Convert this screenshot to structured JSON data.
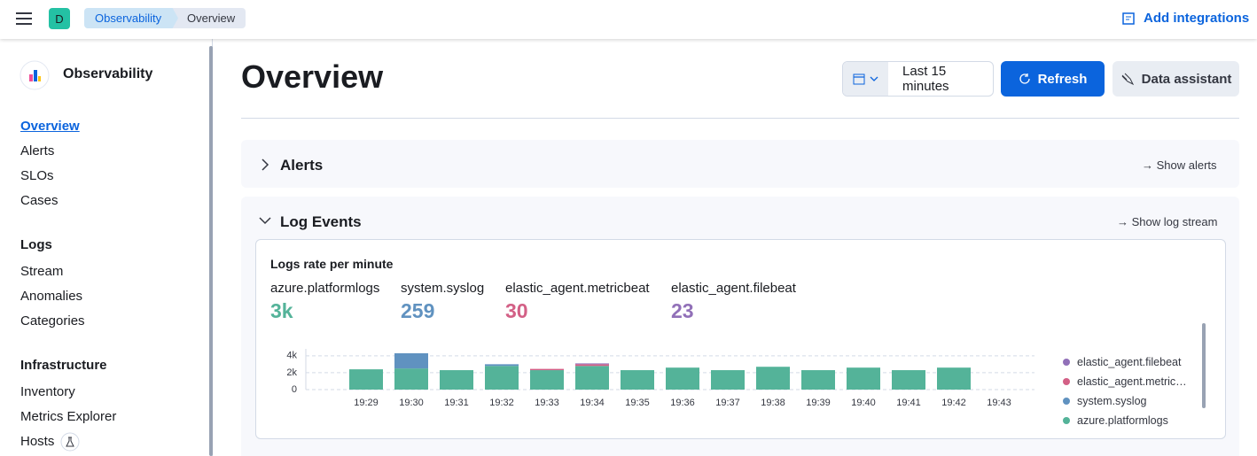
{
  "header": {
    "app_initial": "D",
    "breadcrumbs": [
      "Observability",
      "Overview"
    ],
    "add_integrations": "Add integrations"
  },
  "sidebar": {
    "title": "Observability",
    "nav": [
      "Overview",
      "Alerts",
      "SLOs",
      "Cases"
    ],
    "groups": [
      {
        "title": "Logs",
        "items": [
          "Stream",
          "Anomalies",
          "Categories"
        ]
      },
      {
        "title": "Infrastructure",
        "items": [
          "Inventory",
          "Metrics Explorer",
          "Hosts"
        ]
      }
    ]
  },
  "page": {
    "title": "Overview",
    "date_range": "Last 15 minutes",
    "refresh": "Refresh",
    "data_assistant": "Data assistant"
  },
  "sections": {
    "alerts": {
      "title": "Alerts",
      "link": "Show alerts"
    },
    "log_events": {
      "title": "Log Events",
      "link": "Show log stream",
      "card_title": "Logs rate per minute",
      "stats": [
        {
          "name": "azure.platformlogs",
          "value": "3k",
          "color": "#54b399"
        },
        {
          "name": "system.syslog",
          "value": "259",
          "color": "#6092c0"
        },
        {
          "name": "elastic_agent.metricbeat",
          "value": "30",
          "color": "#d36086"
        },
        {
          "name": "elastic_agent.filebeat",
          "value": "23",
          "color": "#9170b8"
        }
      ]
    }
  },
  "chart_data": {
    "type": "bar",
    "stacked": true,
    "categories": [
      "19:29",
      "19:30",
      "19:31",
      "19:32",
      "19:33",
      "19:34",
      "19:35",
      "19:36",
      "19:37",
      "19:38",
      "19:39",
      "19:40",
      "19:41",
      "19:42",
      "19:43"
    ],
    "series": [
      {
        "name": "azure.platformlogs",
        "color": "#54b399",
        "values": [
          2400,
          2500,
          2300,
          2800,
          2300,
          2800,
          2300,
          2600,
          2300,
          2700,
          2300,
          2600,
          2300,
          2600,
          0
        ]
      },
      {
        "name": "system.syslog",
        "color": "#6092c0",
        "values": [
          0,
          1800,
          0,
          200,
          0,
          0,
          0,
          0,
          0,
          0,
          0,
          0,
          0,
          0,
          0
        ]
      },
      {
        "name": "elastic_agent.metricbeat",
        "color": "#d36086",
        "values": [
          0,
          0,
          0,
          0,
          150,
          200,
          0,
          0,
          0,
          0,
          0,
          0,
          0,
          0,
          0
        ]
      },
      {
        "name": "elastic_agent.filebeat",
        "color": "#9170b8",
        "values": [
          0,
          0,
          0,
          0,
          0,
          100,
          0,
          0,
          0,
          0,
          0,
          0,
          0,
          0,
          0
        ]
      }
    ],
    "ylim": [
      0,
      4400
    ],
    "yticks": [
      0,
      {
        "value": 2000,
        "label": "2k"
      },
      {
        "value": 4000,
        "label": "4k"
      }
    ],
    "grid": true,
    "legend": "right"
  }
}
